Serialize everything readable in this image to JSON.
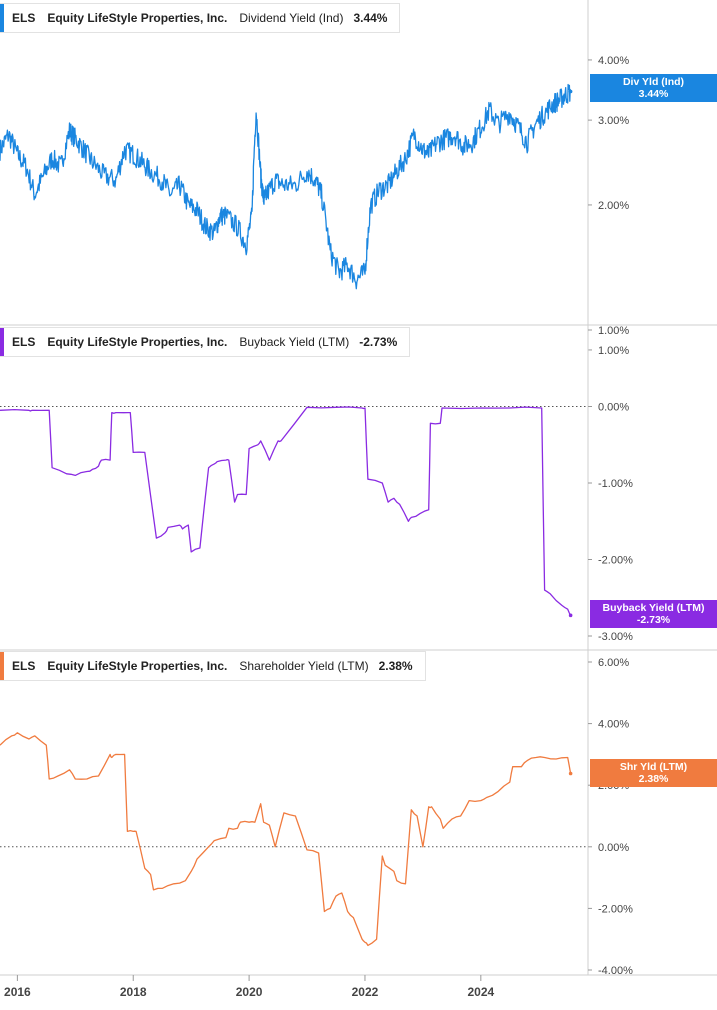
{
  "chart_data": [
    {
      "type": "line",
      "panel": "dividend",
      "ticker": "ELS",
      "company": "Equity LifeStyle Properties, Inc.",
      "metric": "Dividend Yield (Ind)",
      "value_label": "3.44%",
      "flag_name": "Div Yld (Ind)",
      "flag_value": "3.44%",
      "color": "#1a86e0",
      "scale": "log",
      "ylim": [
        1.1,
        4.4
      ],
      "yticks": [
        {
          "v": 1.0,
          "label": "1.00%"
        },
        {
          "v": 2.0,
          "label": "2.00%"
        },
        {
          "v": 3.0,
          "label": "3.00%"
        },
        {
          "v": 4.0,
          "label": "4.00%"
        }
      ],
      "noise": 0.1,
      "x": [
        2015.7,
        2015.85,
        2016.0,
        2016.15,
        2016.3,
        2016.45,
        2016.6,
        2016.75,
        2016.9,
        2017.0,
        2017.15,
        2017.3,
        2017.5,
        2017.7,
        2017.85,
        2018.0,
        2018.15,
        2018.3,
        2018.5,
        2018.65,
        2018.8,
        2018.95,
        2019.1,
        2019.25,
        2019.4,
        2019.5,
        2019.6,
        2019.8,
        2019.95,
        2020.05,
        2020.12,
        2020.2,
        2020.25,
        2020.3,
        2020.45,
        2020.6,
        2020.8,
        2021.0,
        2021.15,
        2021.25,
        2021.4,
        2021.55,
        2021.7,
        2021.85,
        2022.0,
        2022.1,
        2022.25,
        2022.4,
        2022.55,
        2022.7,
        2022.85,
        2023.0,
        2023.1,
        2023.25,
        2023.4,
        2023.55,
        2023.7,
        2023.85,
        2024.0,
        2024.15,
        2024.3,
        2024.5,
        2024.65,
        2024.8,
        2024.95,
        2025.1,
        2025.25,
        2025.35,
        2025.45,
        2025.55
      ],
      "y": [
        2.6,
        2.8,
        2.55,
        2.4,
        2.1,
        2.3,
        2.5,
        2.4,
        2.85,
        2.75,
        2.6,
        2.45,
        2.3,
        2.25,
        2.6,
        2.55,
        2.45,
        2.35,
        2.25,
        2.1,
        2.2,
        2.0,
        1.95,
        1.8,
        1.75,
        1.9,
        1.9,
        1.8,
        1.65,
        1.9,
        3.15,
        2.3,
        2.05,
        2.1,
        2.25,
        2.2,
        2.2,
        2.35,
        2.25,
        2.1,
        1.6,
        1.45,
        1.5,
        1.4,
        1.45,
        2.0,
        2.15,
        2.2,
        2.35,
        2.5,
        2.8,
        2.6,
        2.55,
        2.7,
        2.75,
        2.8,
        2.65,
        2.7,
        2.9,
        3.15,
        2.95,
        3.1,
        2.9,
        2.7,
        2.95,
        3.1,
        3.25,
        3.3,
        3.38,
        3.44
      ]
    },
    {
      "type": "line",
      "panel": "buyback",
      "ticker": "ELS",
      "company": "Equity LifeStyle Properties, Inc.",
      "metric": "Buyback Yield (LTM)",
      "value_label": "-2.73%",
      "flag_name": "Buyback Yield (LTM)",
      "flag_value": "-2.73%",
      "color": "#8a2be2",
      "scale": "linear",
      "ylim": [
        -3.0,
        1.0
      ],
      "reference_line": 0,
      "yticks": [
        {
          "v": 1.0,
          "label": "1.00%"
        },
        {
          "v": 0.0,
          "label": "0.00%"
        },
        {
          "v": -1.0,
          "label": "-1.00%"
        },
        {
          "v": -2.0,
          "label": "-2.00%"
        },
        {
          "v": -3.0,
          "label": "-3.00%"
        }
      ],
      "x": [
        2015.7,
        2016.2,
        2016.25,
        2016.55,
        2016.6,
        2016.85,
        2017.0,
        2017.2,
        2017.3,
        2017.4,
        2017.45,
        2017.6,
        2017.63,
        2017.7,
        2017.72,
        2017.95,
        2018.0,
        2018.2,
        2018.4,
        2018.55,
        2018.6,
        2018.8,
        2018.85,
        2018.95,
        2019.0,
        2019.15,
        2019.3,
        2019.4,
        2019.45,
        2019.6,
        2019.65,
        2019.75,
        2019.8,
        2019.95,
        2020.0,
        2020.15,
        2020.2,
        2020.35,
        2020.5,
        2020.55,
        2021.0,
        2021.5,
        2021.95,
        2022.0,
        2022.05,
        2022.3,
        2022.4,
        2022.5,
        2022.6,
        2022.75,
        2022.8,
        2022.95,
        2023.1,
        2023.13,
        2023.3,
        2023.33,
        2024.0,
        2024.5,
        2025.05,
        2025.1,
        2025.2,
        2025.4,
        2025.5,
        2025.55
      ],
      "y": [
        -0.05,
        -0.05,
        -0.05,
        -0.05,
        -0.8,
        -0.88,
        -0.9,
        -0.85,
        -0.82,
        -0.78,
        -0.7,
        -0.7,
        -0.08,
        -0.08,
        -0.08,
        -0.08,
        -0.6,
        -0.6,
        -1.72,
        -1.65,
        -1.58,
        -1.55,
        -1.6,
        -1.55,
        -1.9,
        -1.85,
        -0.8,
        -0.75,
        -0.72,
        -0.7,
        -0.7,
        -1.25,
        -1.15,
        -1.15,
        -0.55,
        -0.5,
        -0.45,
        -0.7,
        -0.45,
        -0.45,
        -0.01,
        -0.01,
        -0.02,
        -0.02,
        -0.95,
        -1.0,
        -1.25,
        -1.2,
        -1.28,
        -1.5,
        -1.45,
        -1.4,
        -1.35,
        -0.22,
        -0.22,
        -0.02,
        -0.02,
        -0.02,
        -0.02,
        -2.4,
        -2.45,
        -2.6,
        -2.65,
        -2.73
      ]
    },
    {
      "type": "line",
      "panel": "shareholder",
      "ticker": "ELS",
      "company": "Equity LifeStyle Properties, Inc.",
      "metric": "Shareholder Yield (LTM)",
      "value_label": "2.38%",
      "flag_name": "Shr Yld (LTM)",
      "flag_value": "2.38%",
      "color": "#f07b3f",
      "scale": "linear",
      "ylim": [
        -4.0,
        6.0
      ],
      "reference_line": 0,
      "yticks": [
        {
          "v": 6.0,
          "label": "6.00%"
        },
        {
          "v": 4.0,
          "label": "4.00%"
        },
        {
          "v": 2.0,
          "label": "2.00%"
        },
        {
          "v": 0.0,
          "label": "0.00%"
        },
        {
          "v": -2.0,
          "label": "-2.00%"
        },
        {
          "v": -4.0,
          "label": "-4.00%"
        }
      ],
      "x": [
        2015.7,
        2015.9,
        2016.0,
        2016.2,
        2016.3,
        2016.5,
        2016.55,
        2016.7,
        2016.9,
        2017.0,
        2017.2,
        2017.4,
        2017.6,
        2017.63,
        2017.7,
        2017.85,
        2017.9,
        2018.0,
        2018.05,
        2018.2,
        2018.3,
        2018.35,
        2018.5,
        2018.7,
        2018.9,
        2019.0,
        2019.1,
        2019.3,
        2019.4,
        2019.6,
        2019.65,
        2019.8,
        2019.85,
        2020.0,
        2020.1,
        2020.2,
        2020.25,
        2020.35,
        2020.45,
        2020.6,
        2020.8,
        2021.0,
        2021.2,
        2021.3,
        2021.4,
        2021.5,
        2021.6,
        2021.7,
        2021.8,
        2021.95,
        2022.0,
        2022.05,
        2022.2,
        2022.3,
        2022.35,
        2022.5,
        2022.55,
        2022.7,
        2022.8,
        2022.9,
        2023.0,
        2023.1,
        2023.15,
        2023.3,
        2023.35,
        2023.5,
        2023.65,
        2023.8,
        2024.0,
        2024.1,
        2024.3,
        2024.5,
        2024.55,
        2024.7,
        2024.8,
        2024.95,
        2025.1,
        2025.3,
        2025.5,
        2025.55
      ],
      "y": [
        3.3,
        3.6,
        3.7,
        3.5,
        3.6,
        3.3,
        2.2,
        2.3,
        2.5,
        2.2,
        2.2,
        2.3,
        3.0,
        2.9,
        3.0,
        3.0,
        0.5,
        0.5,
        0.5,
        -0.7,
        -0.9,
        -1.4,
        -1.35,
        -1.2,
        -1.1,
        -0.8,
        -0.4,
        0.0,
        0.2,
        0.3,
        0.6,
        0.6,
        0.8,
        0.8,
        0.8,
        1.4,
        0.8,
        0.7,
        0.0,
        1.1,
        1.0,
        -0.1,
        -0.2,
        -2.1,
        -2.0,
        -1.6,
        -1.5,
        -2.1,
        -2.3,
        -3.0,
        -3.1,
        -3.2,
        -3.0,
        -0.3,
        -0.6,
        -0.8,
        -1.1,
        -1.2,
        1.2,
        1.0,
        0.0,
        1.3,
        1.3,
        0.9,
        0.6,
        0.9,
        1.0,
        1.5,
        1.5,
        1.6,
        1.8,
        2.1,
        2.6,
        2.6,
        2.8,
        2.9,
        2.9,
        2.85,
        2.9,
        2.38
      ]
    }
  ],
  "x_axis": {
    "ticks": [
      {
        "v": 2016,
        "label": "2016"
      },
      {
        "v": 2018,
        "label": "2018"
      },
      {
        "v": 2020,
        "label": "2020"
      },
      {
        "v": 2022,
        "label": "2022"
      },
      {
        "v": 2024,
        "label": "2024"
      }
    ]
  }
}
